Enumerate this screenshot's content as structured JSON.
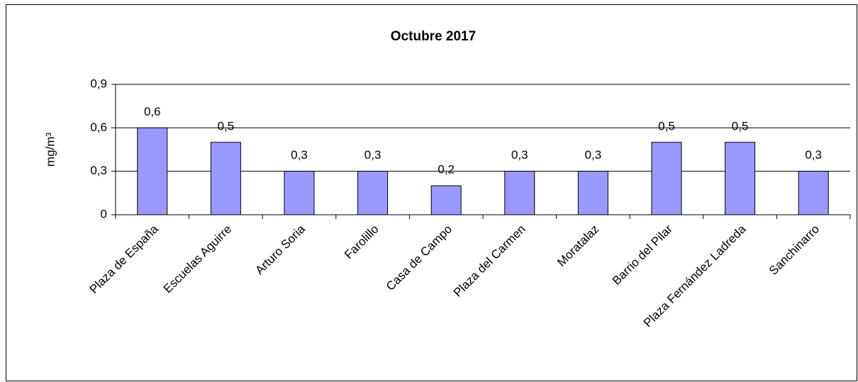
{
  "chart_data": {
    "type": "bar",
    "title": "Octubre 2017",
    "y_label": "mg/m³",
    "categories": [
      "Plaza de España",
      "Escuelas Aguirre",
      "Arturo Soria",
      "Farolillo",
      "Casa de Campo",
      "Plaza del Carmen",
      "Moratalaz",
      "Barrio del Pilar",
      "Plaza Fernández Ladreda",
      "Sanchinarro"
    ],
    "values": [
      0.6,
      0.5,
      0.3,
      0.3,
      0.2,
      0.3,
      0.3,
      0.5,
      0.5,
      0.3
    ],
    "value_labels": [
      "0,6",
      "0,5",
      "0,3",
      "0,3",
      "0,2",
      "0,3",
      "0,3",
      "0,5",
      "0,5",
      "0,3"
    ],
    "color": "#9999ff",
    "ylim": [
      0,
      0.9
    ],
    "yticks": [
      0,
      {
        "value": 0.3,
        "label": "0,3"
      },
      {
        "value": 0.6,
        "label": "0,6"
      },
      {
        "value": 0.9,
        "label": "0,9"
      }
    ],
    "grid": true
  }
}
